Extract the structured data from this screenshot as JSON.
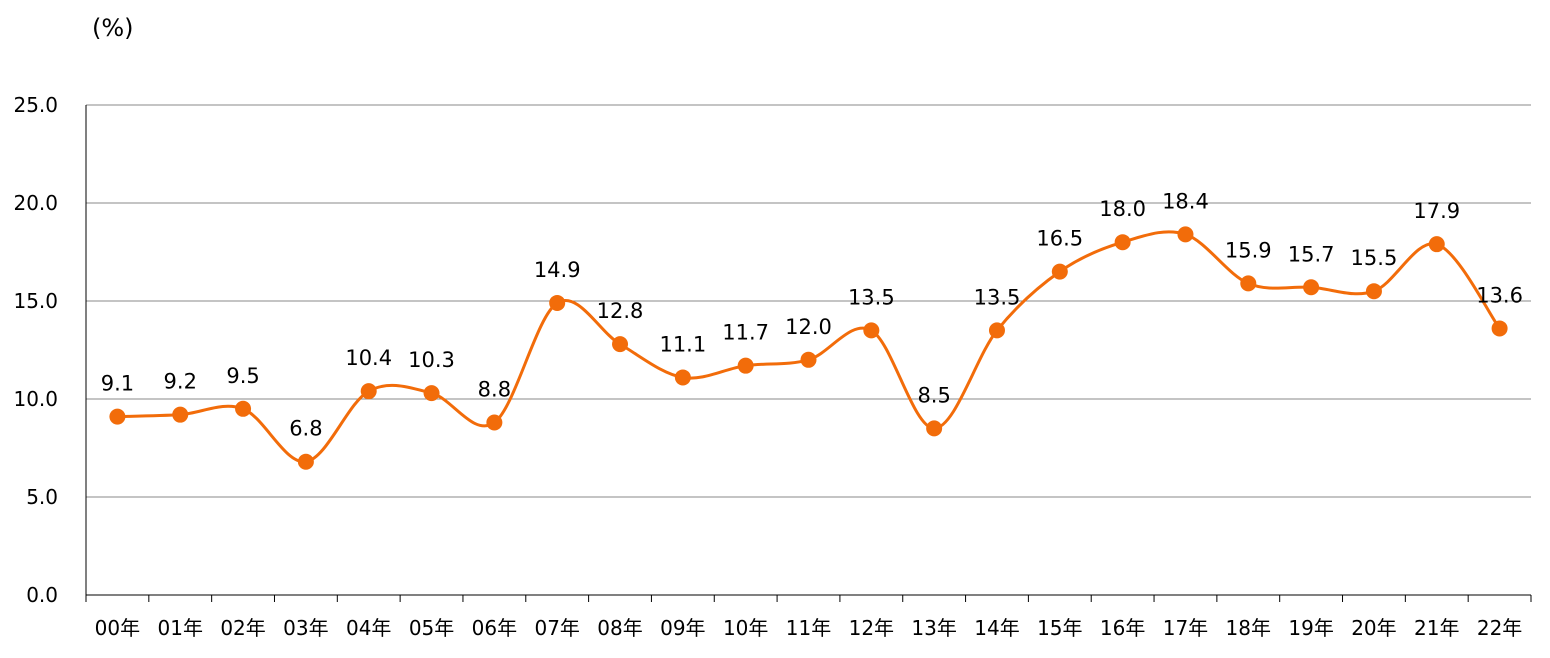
{
  "chart_data": {
    "type": "line",
    "unit_label": "(%)",
    "categories": [
      "00年",
      "01年",
      "02年",
      "03年",
      "04年",
      "05年",
      "06年",
      "07年",
      "08年",
      "09年",
      "10年",
      "11年",
      "12年",
      "13年",
      "14年",
      "15年",
      "16年",
      "17年",
      "18年",
      "19年",
      "20年",
      "21年",
      "22年"
    ],
    "series": [
      {
        "values": [
          9.1,
          9.2,
          9.5,
          6.8,
          10.4,
          10.3,
          8.8,
          14.9,
          12.8,
          11.1,
          11.7,
          12.0,
          13.5,
          8.5,
          13.5,
          16.5,
          18.0,
          18.4,
          15.9,
          15.7,
          15.5,
          17.9,
          13.6
        ],
        "data_labels": [
          "9.1",
          "9.2",
          "9.5",
          "6.8",
          "10.4",
          "10.3",
          "8.8",
          "14.9",
          "12.8",
          "11.1",
          "11.7",
          "12.0",
          "13.5",
          "8.5",
          "13.5",
          "16.5",
          "18.0",
          "18.4",
          "15.9",
          "15.7",
          "15.5",
          "17.9",
          "13.6"
        ],
        "color": "#F26C0A"
      }
    ],
    "ylim": [
      0,
      25
    ],
    "yticks": [
      "0.0",
      "5.0",
      "10.0",
      "15.0",
      "20.0",
      "25.0"
    ],
    "grid": true,
    "smooth": true
  }
}
